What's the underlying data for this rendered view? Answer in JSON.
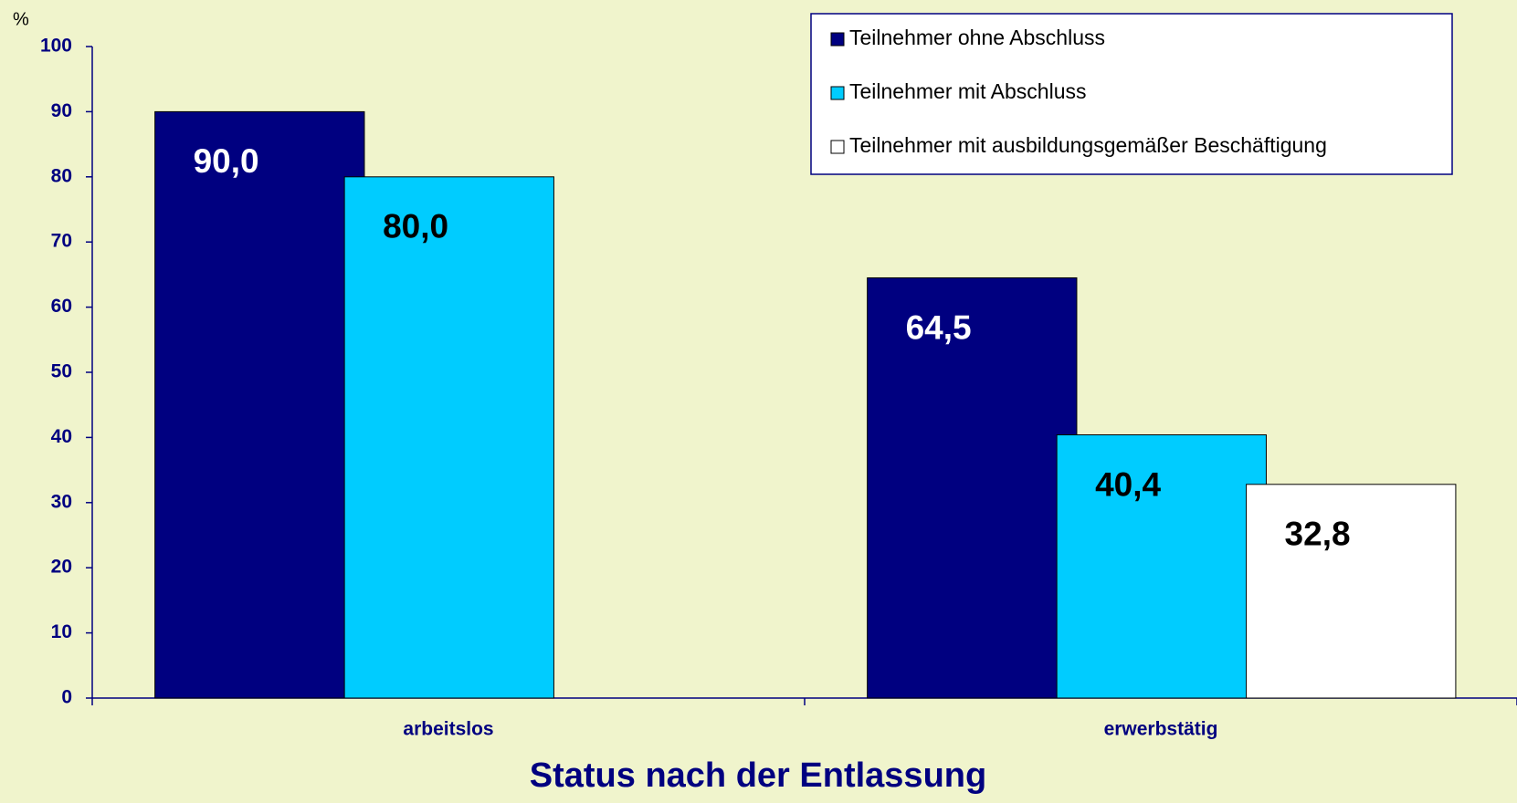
{
  "chart_data": {
    "type": "bar",
    "y_label": "%",
    "x_label": "Status nach der Entlassung",
    "categories": [
      "arbeitslos",
      "erwerbstätig"
    ],
    "series": [
      {
        "name": "Teilnehmer ohne Abschluss",
        "color": "#000080",
        "label_color": "#ffffff",
        "values": [
          90.0,
          64.5
        ],
        "value_labels": [
          "90,0",
          "64,5"
        ]
      },
      {
        "name": "Teilnehmer mit Abschluss",
        "color": "#00ccff",
        "label_color": "#000000",
        "values": [
          80.0,
          40.4
        ],
        "value_labels": [
          "80,0",
          "40,4"
        ]
      },
      {
        "name": "Teilnehmer mit ausbildungsgemäßer Beschäftigung",
        "color": "#ffffff",
        "label_color": "#000000",
        "values": [
          null,
          32.8
        ],
        "value_labels": [
          null,
          "32,8"
        ]
      }
    ],
    "ylim": [
      0,
      100
    ],
    "yticks": [
      0,
      10,
      20,
      30,
      40,
      50,
      60,
      70,
      80,
      90,
      100
    ],
    "legend": "top-right"
  }
}
